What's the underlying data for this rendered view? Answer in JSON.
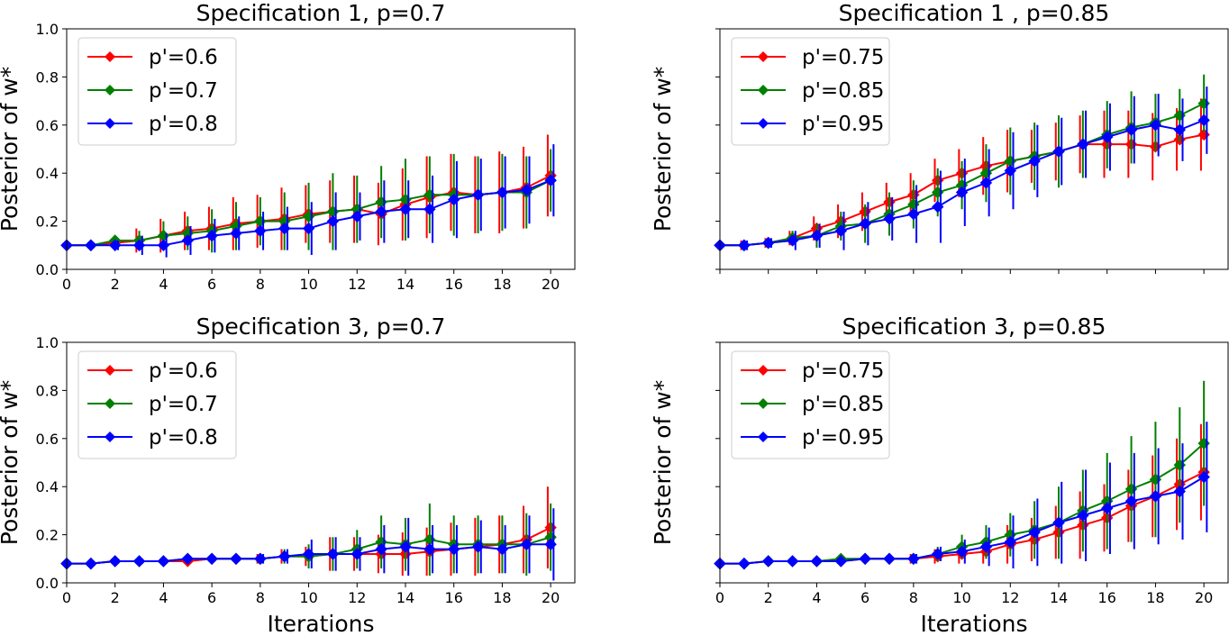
{
  "chart_data": [
    {
      "type": "line",
      "title": "Specification 1, p=0.7",
      "xlabel": "",
      "ylabel": "Posterior of w*",
      "xlim": [
        0,
        21
      ],
      "ylim": [
        0,
        1.0
      ],
      "xticks": [
        "0",
        "2",
        "4",
        "6",
        "8",
        "10",
        "12",
        "14",
        "16",
        "18",
        "20"
      ],
      "yticks": [
        "0.0",
        "0.2",
        "0.4",
        "0.6",
        "0.8",
        "1.0"
      ],
      "legend_position": "top-left",
      "grid": false,
      "x": [
        0,
        1,
        2,
        3,
        4,
        5,
        6,
        7,
        8,
        9,
        10,
        11,
        12,
        13,
        14,
        15,
        16,
        17,
        18,
        19,
        20
      ],
      "series": [
        {
          "name": "p'=0.6",
          "color": "#ff0000",
          "values": [
            0.1,
            0.1,
            0.11,
            0.12,
            0.14,
            0.16,
            0.17,
            0.19,
            0.2,
            0.21,
            0.23,
            0.24,
            0.25,
            0.23,
            0.27,
            0.3,
            0.32,
            0.31,
            0.32,
            0.34,
            0.39
          ],
          "err": [
            0.01,
            0.01,
            0.02,
            0.05,
            0.07,
            0.08,
            0.09,
            0.11,
            0.11,
            0.13,
            0.12,
            0.13,
            0.14,
            0.13,
            0.15,
            0.17,
            0.16,
            0.16,
            0.17,
            0.17,
            0.17
          ]
        },
        {
          "name": "p'=0.7",
          "color": "#008000",
          "values": [
            0.1,
            0.1,
            0.12,
            0.12,
            0.14,
            0.15,
            0.16,
            0.18,
            0.2,
            0.2,
            0.22,
            0.24,
            0.25,
            0.28,
            0.29,
            0.31,
            0.31,
            0.31,
            0.32,
            0.32,
            0.37
          ],
          "err": [
            0.01,
            0.01,
            0.02,
            0.04,
            0.06,
            0.07,
            0.09,
            0.1,
            0.1,
            0.12,
            0.14,
            0.16,
            0.14,
            0.15,
            0.17,
            0.16,
            0.17,
            0.16,
            0.16,
            0.15,
            0.13
          ]
        },
        {
          "name": "p'=0.8",
          "color": "#0000ff",
          "values": [
            0.1,
            0.1,
            0.1,
            0.1,
            0.1,
            0.12,
            0.14,
            0.15,
            0.16,
            0.17,
            0.17,
            0.2,
            0.22,
            0.24,
            0.25,
            0.25,
            0.29,
            0.31,
            0.32,
            0.33,
            0.37
          ],
          "err": [
            0.01,
            0.01,
            0.02,
            0.04,
            0.05,
            0.06,
            0.07,
            0.07,
            0.08,
            0.09,
            0.11,
            0.12,
            0.1,
            0.13,
            0.12,
            0.14,
            0.16,
            0.15,
            0.15,
            0.14,
            0.15
          ]
        }
      ]
    },
    {
      "type": "line",
      "title": "Specification 1 , p=0.85",
      "xlabel": "",
      "ylabel": "Posterior of w*",
      "xlim": [
        0,
        21
      ],
      "ylim": [
        0,
        1.0
      ],
      "xticks": [],
      "yticks": [],
      "legend_position": "top-left",
      "grid": false,
      "x": [
        0,
        1,
        2,
        3,
        4,
        5,
        6,
        7,
        8,
        9,
        10,
        11,
        12,
        13,
        14,
        15,
        16,
        17,
        18,
        19,
        20
      ],
      "series": [
        {
          "name": "p'=0.75",
          "color": "#ff0000",
          "values": [
            0.1,
            0.1,
            0.11,
            0.13,
            0.17,
            0.2,
            0.24,
            0.28,
            0.31,
            0.37,
            0.4,
            0.43,
            0.45,
            0.47,
            0.49,
            0.52,
            0.52,
            0.52,
            0.51,
            0.54,
            0.56
          ],
          "err": [
            0.01,
            0.02,
            0.02,
            0.03,
            0.05,
            0.07,
            0.08,
            0.08,
            0.09,
            0.09,
            0.1,
            0.12,
            0.13,
            0.11,
            0.12,
            0.12,
            0.14,
            0.14,
            0.14,
            0.13,
            0.15
          ]
        },
        {
          "name": "p'=0.85",
          "color": "#008000",
          "values": [
            0.1,
            0.1,
            0.11,
            0.13,
            0.14,
            0.18,
            0.19,
            0.23,
            0.27,
            0.32,
            0.35,
            0.4,
            0.45,
            0.47,
            0.49,
            0.52,
            0.56,
            0.59,
            0.61,
            0.64,
            0.69
          ],
          "err": [
            0.01,
            0.02,
            0.02,
            0.03,
            0.05,
            0.06,
            0.08,
            0.09,
            0.1,
            0.1,
            0.1,
            0.12,
            0.14,
            0.14,
            0.15,
            0.14,
            0.14,
            0.15,
            0.12,
            0.11,
            0.12
          ]
        },
        {
          "name": "p'=0.95",
          "color": "#0000ff",
          "values": [
            0.1,
            0.1,
            0.11,
            0.12,
            0.14,
            0.16,
            0.19,
            0.21,
            0.23,
            0.26,
            0.32,
            0.36,
            0.41,
            0.45,
            0.49,
            0.52,
            0.55,
            0.58,
            0.6,
            0.58,
            0.62
          ],
          "err": [
            0.01,
            0.02,
            0.02,
            0.04,
            0.05,
            0.08,
            0.09,
            0.09,
            0.12,
            0.15,
            0.14,
            0.14,
            0.16,
            0.15,
            0.14,
            0.14,
            0.14,
            0.14,
            0.13,
            0.13,
            0.14
          ]
        }
      ]
    },
    {
      "type": "line",
      "title": "Specification 3, p=0.7",
      "xlabel": "Iterations",
      "ylabel": "Posterior of w*",
      "xlim": [
        0,
        21
      ],
      "ylim": [
        0,
        1.0
      ],
      "xticks": [
        "0",
        "2",
        "4",
        "6",
        "8",
        "10",
        "12",
        "14",
        "16",
        "18",
        "20"
      ],
      "yticks": [
        "0.0",
        "0.2",
        "0.4",
        "0.6",
        "0.8",
        "1.0"
      ],
      "legend_position": "top-left",
      "grid": false,
      "x": [
        0,
        1,
        2,
        3,
        4,
        5,
        6,
        7,
        8,
        9,
        10,
        11,
        12,
        13,
        14,
        15,
        16,
        17,
        18,
        19,
        20
      ],
      "series": [
        {
          "name": "p'=0.6",
          "color": "#ff0000",
          "values": [
            0.08,
            0.08,
            0.09,
            0.09,
            0.09,
            0.09,
            0.1,
            0.1,
            0.1,
            0.11,
            0.11,
            0.12,
            0.12,
            0.12,
            0.12,
            0.13,
            0.14,
            0.15,
            0.16,
            0.18,
            0.23
          ],
          "err": [
            0.01,
            0.01,
            0.01,
            0.01,
            0.01,
            0.01,
            0.01,
            0.01,
            0.02,
            0.03,
            0.04,
            0.07,
            0.07,
            0.08,
            0.09,
            0.1,
            0.11,
            0.12,
            0.12,
            0.14,
            0.17
          ]
        },
        {
          "name": "p'=0.7",
          "color": "#008000",
          "values": [
            0.08,
            0.08,
            0.09,
            0.09,
            0.09,
            0.1,
            0.1,
            0.1,
            0.1,
            0.11,
            0.11,
            0.12,
            0.14,
            0.17,
            0.16,
            0.18,
            0.16,
            0.16,
            0.16,
            0.16,
            0.19
          ],
          "err": [
            0.01,
            0.01,
            0.01,
            0.01,
            0.01,
            0.01,
            0.01,
            0.01,
            0.02,
            0.03,
            0.05,
            0.07,
            0.08,
            0.11,
            0.11,
            0.15,
            0.12,
            0.12,
            0.12,
            0.13,
            0.14
          ]
        },
        {
          "name": "p'=0.8",
          "color": "#0000ff",
          "values": [
            0.08,
            0.08,
            0.09,
            0.09,
            0.09,
            0.1,
            0.1,
            0.1,
            0.1,
            0.11,
            0.12,
            0.12,
            0.12,
            0.14,
            0.15,
            0.14,
            0.14,
            0.15,
            0.14,
            0.16,
            0.16
          ],
          "err": [
            0.01,
            0.01,
            0.01,
            0.01,
            0.01,
            0.01,
            0.01,
            0.01,
            0.02,
            0.03,
            0.06,
            0.07,
            0.07,
            0.1,
            0.12,
            0.1,
            0.1,
            0.11,
            0.1,
            0.12,
            0.15
          ]
        }
      ]
    },
    {
      "type": "line",
      "title": "Specification 3, p=0.85",
      "xlabel": "Iterations",
      "ylabel": "Posterior of w*",
      "xlim": [
        0,
        21
      ],
      "ylim": [
        0,
        1.0
      ],
      "xticks": [
        "0",
        "2",
        "4",
        "6",
        "8",
        "10",
        "12",
        "14",
        "16",
        "18",
        "20"
      ],
      "yticks": [],
      "legend_position": "top-left",
      "grid": false,
      "x": [
        0,
        1,
        2,
        3,
        4,
        5,
        6,
        7,
        8,
        9,
        10,
        11,
        12,
        13,
        14,
        15,
        16,
        17,
        18,
        19,
        20
      ],
      "series": [
        {
          "name": "p'=0.75",
          "color": "#ff0000",
          "values": [
            0.08,
            0.08,
            0.09,
            0.09,
            0.09,
            0.09,
            0.1,
            0.1,
            0.1,
            0.11,
            0.12,
            0.13,
            0.16,
            0.18,
            0.21,
            0.24,
            0.27,
            0.32,
            0.36,
            0.41,
            0.46
          ],
          "err": [
            0.01,
            0.01,
            0.01,
            0.01,
            0.01,
            0.01,
            0.01,
            0.01,
            0.02,
            0.03,
            0.04,
            0.05,
            0.08,
            0.09,
            0.11,
            0.14,
            0.14,
            0.15,
            0.17,
            0.19,
            0.2
          ]
        },
        {
          "name": "p'=0.85",
          "color": "#008000",
          "values": [
            0.08,
            0.08,
            0.09,
            0.09,
            0.09,
            0.1,
            0.1,
            0.1,
            0.1,
            0.12,
            0.15,
            0.17,
            0.2,
            0.22,
            0.25,
            0.3,
            0.34,
            0.39,
            0.43,
            0.49,
            0.58
          ],
          "err": [
            0.01,
            0.01,
            0.01,
            0.01,
            0.01,
            0.01,
            0.01,
            0.01,
            0.02,
            0.03,
            0.05,
            0.07,
            0.09,
            0.12,
            0.15,
            0.17,
            0.2,
            0.22,
            0.24,
            0.24,
            0.26
          ]
        },
        {
          "name": "p'=0.95",
          "color": "#0000ff",
          "values": [
            0.08,
            0.08,
            0.09,
            0.09,
            0.09,
            0.09,
            0.1,
            0.1,
            0.1,
            0.12,
            0.13,
            0.15,
            0.17,
            0.21,
            0.25,
            0.28,
            0.31,
            0.34,
            0.36,
            0.38,
            0.44
          ],
          "err": [
            0.01,
            0.01,
            0.01,
            0.01,
            0.01,
            0.01,
            0.01,
            0.01,
            0.02,
            0.03,
            0.05,
            0.08,
            0.11,
            0.14,
            0.17,
            0.19,
            0.19,
            0.2,
            0.2,
            0.2,
            0.23
          ]
        }
      ]
    }
  ]
}
